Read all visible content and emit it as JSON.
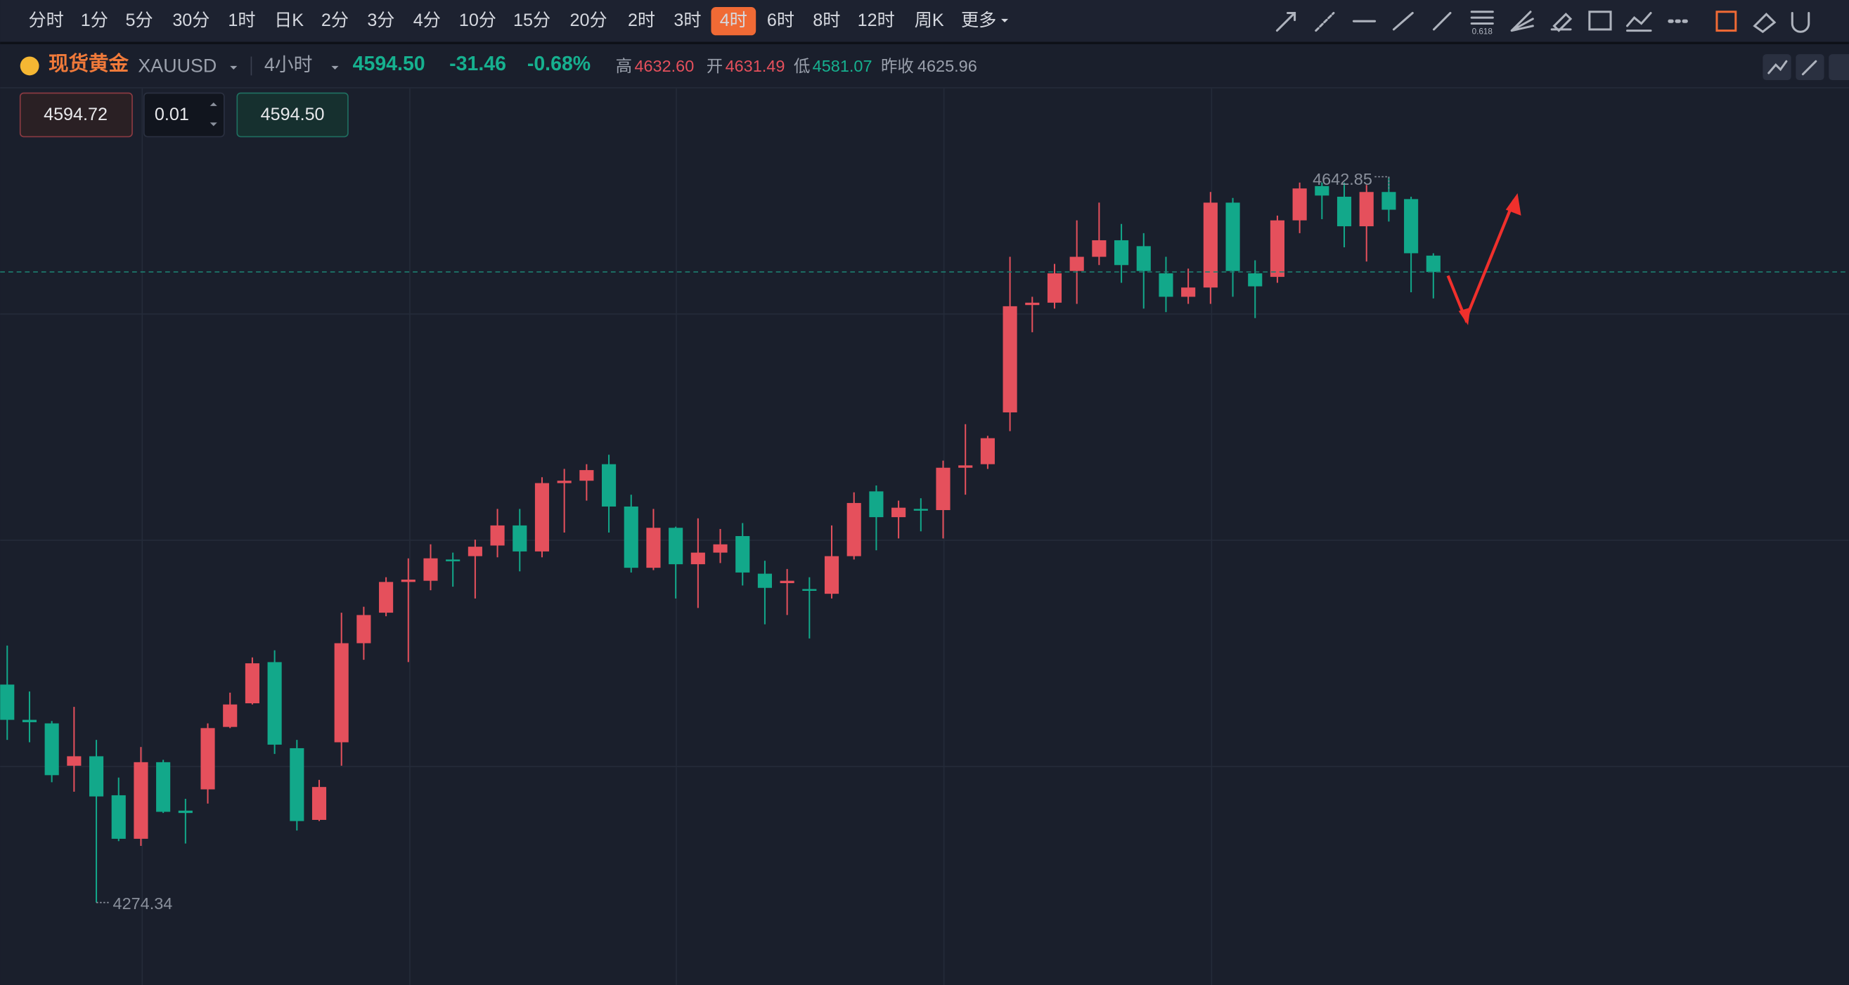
{
  "toolbar": {
    "intervals": [
      "分时",
      "1分",
      "5分",
      "30分",
      "1时",
      "日K",
      "2分",
      "3分",
      "4分",
      "10分",
      "15分",
      "20分",
      "2时",
      "3时",
      "4时",
      "6时",
      "8时",
      "12时",
      "周K",
      "更多"
    ],
    "active": 14,
    "fib_label": "0.618"
  },
  "header": {
    "name": "现货黄金",
    "symbol": "XAUUSD",
    "period": "4小时",
    "price": "4594.50",
    "change": "-31.46",
    "change_pct": "-0.68%",
    "high_label": "高",
    "high": "4632.60",
    "open_label": "开",
    "open": "4631.49",
    "low_label": "低",
    "low": "4581.07",
    "prev_close_label": "昨收",
    "prev_close": "4625.96"
  },
  "order": {
    "sell": "4594.72",
    "quantity": "0.01",
    "buy": "4594.50"
  },
  "chart_data": {
    "type": "candlestick",
    "up_color": "#e5505c",
    "down_color": "#12a88a",
    "open": [
      4385.0,
      4367.1,
      4365.3,
      4343.8,
      4348.6,
      4328.8,
      4306.7,
      4345.6,
      4321.0,
      4331.8,
      4363.5,
      4375.5,
      4396.4,
      4352.7,
      4316.3,
      4355.7,
      4406.0,
      4421.5,
      4437.1,
      4437.7,
      4448.5,
      4450.2,
      4455.6,
      4465.8,
      4452.6,
      4487.3,
      4488.5,
      4496.9,
      4475.4,
      4444.3,
      4464.6,
      4446.1,
      4452.0,
      4460.4,
      4441.3,
      4436.5,
      4433.5,
      4431.1,
      4450.2,
      4483.1,
      4470.0,
      4474.2,
      4473.6,
      4495.1,
      4496.9,
      4523.2,
      4577.7,
      4578.9,
      4595.0,
      4602.2,
      4610.6,
      4607.6,
      4593.8,
      4581.9,
      4586.6,
      4629.7,
      4593.8,
      4592.0,
      4620.7,
      4638.1,
      4632.7,
      4617.7,
      4635.1,
      4631.5,
      4602.8
    ],
    "high": [
      4404.8,
      4381.5,
      4366.5,
      4373.7,
      4356.9,
      4337.8,
      4353.3,
      4346.8,
      4327.0,
      4365.3,
      4380.9,
      4398.8,
      4402.4,
      4356.9,
      4336.6,
      4421.5,
      4424.5,
      4439.5,
      4449.1,
      4456.2,
      4452.0,
      4458.6,
      4474.2,
      4474.2,
      4490.3,
      4494.5,
      4496.9,
      4501.7,
      4481.4,
      4474.2,
      4465.2,
      4469.4,
      4464.0,
      4467.0,
      4447.9,
      4443.7,
      4439.5,
      4465.8,
      4482.6,
      4486.1,
      4478.4,
      4479.6,
      4498.7,
      4517.2,
      4511.3,
      4602.2,
      4581.9,
      4598.6,
      4620.7,
      4629.7,
      4618.9,
      4614.2,
      4602.2,
      4596.2,
      4635.1,
      4632.1,
      4600.4,
      4623.1,
      4639.9,
      4639.9,
      4639.9,
      4638.7,
      4642.85,
      4632.7,
      4604.0
    ],
    "low": [
      4356.9,
      4355.7,
      4335.4,
      4330.6,
      4274.34,
      4305.5,
      4303.1,
      4319.8,
      4304.3,
      4324.6,
      4362.9,
      4374.9,
      4349.8,
      4310.9,
      4315.7,
      4343.8,
      4397.6,
      4419.7,
      4396.4,
      4432.9,
      4434.7,
      4428.7,
      4449.6,
      4442.5,
      4449.6,
      4462.2,
      4478.4,
      4462.2,
      4441.9,
      4443.1,
      4428.7,
      4423.9,
      4446.7,
      4435.3,
      4415.6,
      4420.3,
      4408.4,
      4428.7,
      4448.5,
      4453.2,
      4459.2,
      4462.8,
      4459.2,
      4481.4,
      4494.5,
      4513.7,
      4563.9,
      4575.9,
      4578.3,
      4598.0,
      4589.0,
      4575.9,
      4574.1,
      4578.3,
      4578.3,
      4581.9,
      4571.1,
      4589.0,
      4614.2,
      4621.3,
      4607.0,
      4599.8,
      4620.1,
      4584.2,
      4581.07
    ],
    "close": [
      4367.1,
      4365.9,
      4339.0,
      4348.6,
      4328.2,
      4306.7,
      4345.6,
      4320.4,
      4319.8,
      4362.9,
      4374.9,
      4395.8,
      4354.5,
      4315.7,
      4333.0,
      4406.0,
      4420.3,
      4437.1,
      4438.3,
      4449.1,
      4447.9,
      4455.0,
      4465.8,
      4452.6,
      4487.3,
      4488.5,
      4493.9,
      4475.4,
      4444.3,
      4464.6,
      4446.1,
      4452.0,
      4456.2,
      4441.9,
      4434.1,
      4437.7,
      4432.9,
      4450.2,
      4477.2,
      4470.0,
      4474.8,
      4473.6,
      4495.1,
      4496.3,
      4510.1,
      4577.1,
      4578.9,
      4593.8,
      4602.2,
      4610.6,
      4598.0,
      4595.0,
      4581.9,
      4586.6,
      4629.7,
      4595.0,
      4587.2,
      4620.7,
      4636.9,
      4633.3,
      4617.7,
      4635.1,
      4626.1,
      4604.0,
      4594.5
    ]
  }
}
